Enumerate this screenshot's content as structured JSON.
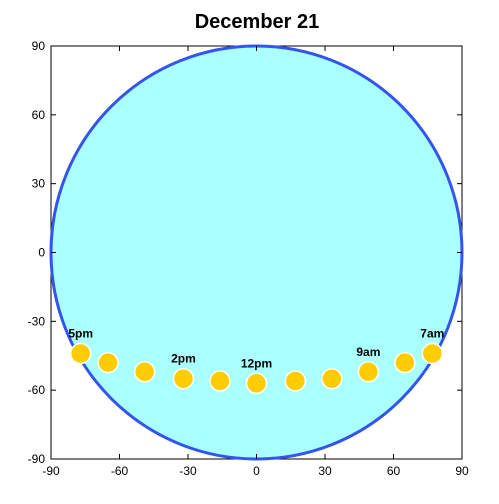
{
  "chart_data": {
    "type": "scatter",
    "title": "December 21",
    "xlabel": "",
    "ylabel": "",
    "xlim": [
      -90,
      90
    ],
    "ylim": [
      -90,
      90
    ],
    "x_ticks": [
      -90,
      -60,
      -30,
      0,
      30,
      60,
      90
    ],
    "y_ticks": [
      -90,
      -60,
      -30,
      0,
      30,
      60,
      90
    ],
    "grid": false,
    "background_circle": {
      "center": [
        0,
        0
      ],
      "radius": 90
    },
    "series": [
      {
        "points": [
          {
            "x": 77,
            "y": -44,
            "label": "7am"
          },
          {
            "x": 65,
            "y": -48,
            "label": ""
          },
          {
            "x": 49,
            "y": -52,
            "label": "9am"
          },
          {
            "x": 33,
            "y": -55,
            "label": ""
          },
          {
            "x": 17,
            "y": -56,
            "label": ""
          },
          {
            "x": 0,
            "y": -57,
            "label": "12pm"
          },
          {
            "x": -16,
            "y": -56,
            "label": ""
          },
          {
            "x": -32,
            "y": -55,
            "label": "2pm"
          },
          {
            "x": -49,
            "y": -52,
            "label": ""
          },
          {
            "x": -65,
            "y": -48,
            "label": ""
          },
          {
            "x": -77,
            "y": -44,
            "label": "5pm"
          }
        ]
      }
    ],
    "colors": {
      "circle_fill": "#aaffff",
      "circle_stroke": "#3355ee",
      "marker_fill": "#ffcc00",
      "marker_stroke": "#ffffff",
      "axis": "#000000"
    }
  }
}
